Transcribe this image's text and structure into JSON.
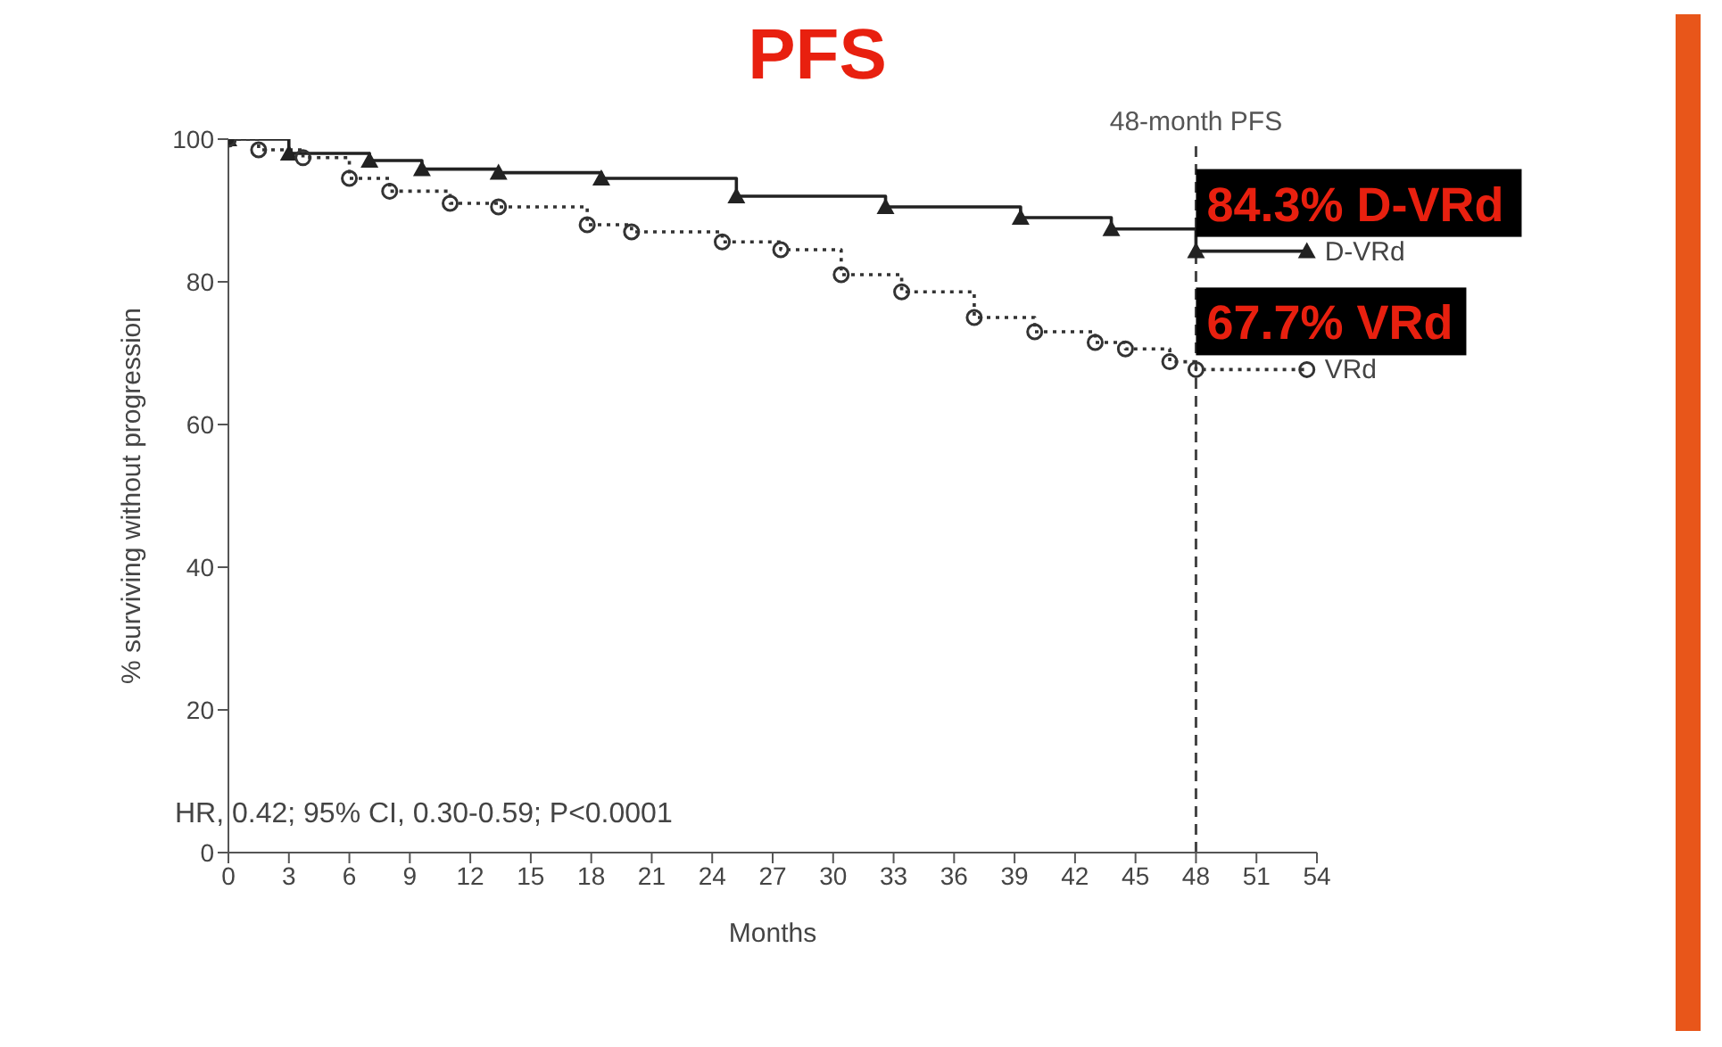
{
  "chart_data": {
    "type": "step",
    "title": "PFS",
    "xlabel": "Months",
    "ylabel": "% surviving without progression",
    "xlim": [
      0,
      54
    ],
    "xticks": [
      0,
      3,
      6,
      9,
      12,
      15,
      18,
      21,
      24,
      27,
      30,
      33,
      36,
      39,
      42,
      45,
      48,
      51,
      54
    ],
    "ylim": [
      0,
      100
    ],
    "yticks": [
      0,
      20,
      40,
      60,
      80,
      100
    ],
    "grid": false,
    "legend": false,
    "series": [
      {
        "name": "D-VRd",
        "color": "#222222",
        "marker": "triangle",
        "line_style": "solid",
        "x": [
          0,
          3,
          7,
          9.6,
          13.4,
          18.5,
          25.2,
          32.6,
          39.3,
          43.8,
          48,
          53.5
        ],
        "values": [
          100,
          98,
          97,
          95.8,
          95.3,
          94.5,
          92,
          90.5,
          89,
          87.4,
          84.3,
          84.3
        ]
      },
      {
        "name": "VRd",
        "color": "#333333",
        "marker": "circle",
        "line_style": "dotted",
        "x": [
          0,
          1.5,
          3.7,
          6,
          8,
          11,
          13.4,
          17.8,
          20,
          24.5,
          27.4,
          30.4,
          33.4,
          37,
          40,
          43,
          44.5,
          46.7,
          48,
          53.5
        ],
        "values": [
          100,
          98.5,
          97.4,
          94.5,
          92.7,
          91,
          90.5,
          88,
          87,
          85.6,
          84.5,
          81,
          78.6,
          75,
          73,
          71.5,
          70.6,
          68.8,
          67.7,
          67.7
        ]
      }
    ],
    "ref_lines": [
      {
        "axis": "x",
        "value": 48,
        "label": "48-month PFS",
        "color": "#444444",
        "line_style": "dashed"
      }
    ],
    "annotations": [
      {
        "text": "84.3% D-VRd",
        "x": 48,
        "y": 84.3
      },
      {
        "text": "67.7% VRd",
        "x": 48,
        "y": 67.7
      },
      "HR, 0.42; 95% CI, 0.30-0.59; P<0.0001"
    ]
  }
}
